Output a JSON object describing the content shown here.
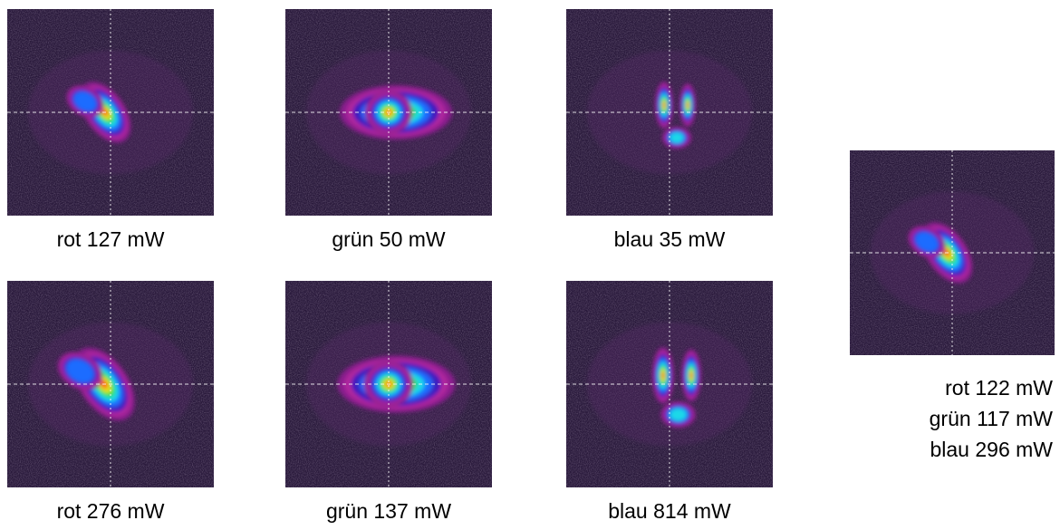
{
  "panels": [
    {
      "caption": "rot 127 mW"
    },
    {
      "caption": "grün 50 mW"
    },
    {
      "caption": "blau 35 mW"
    },
    {
      "caption": "rot 276 mW"
    },
    {
      "caption": "grün 137 mW"
    },
    {
      "caption": "blau 814 mW"
    },
    {
      "caption_lines": [
        "rot 122 mW",
        "grün 117 mW",
        "blau 296 mW"
      ]
    }
  ]
}
